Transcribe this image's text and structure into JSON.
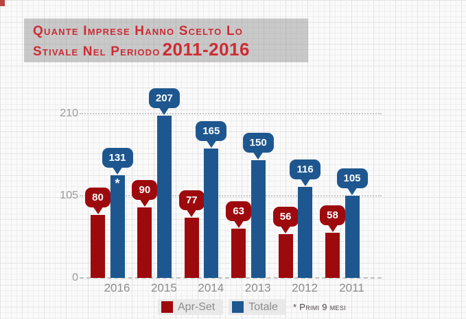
{
  "title": {
    "line1": "Quante Imprese Hanno Scelto Lo",
    "line2": "Stivale Nel Periodo",
    "line2_range": "2011-2016",
    "color": "#CD2B33"
  },
  "footnote": "* Primi 9 mesi",
  "chart_data": {
    "type": "bar",
    "categories": [
      "2016",
      "2015",
      "2014",
      "2013",
      "2012",
      "2011"
    ],
    "series": [
      {
        "name": "Apr-Set",
        "color": "#9D0A0E",
        "values": [
          80,
          90,
          77,
          63,
          56,
          58
        ]
      },
      {
        "name": "Totale",
        "color": "#1E578F",
        "values": [
          131,
          207,
          165,
          150,
          116,
          105
        ],
        "annotations": [
          {
            "index": 0,
            "text": "*"
          }
        ]
      }
    ],
    "y_ticks": [
      0,
      105,
      210
    ],
    "ylim": [
      0,
      230
    ],
    "xlabel": "",
    "ylabel": "",
    "grid": "horizontal dotted",
    "legend_position": "bottom-center",
    "value_labels": "bubble callouts above bars",
    "footnote": "* Primi 9 mesi"
  }
}
